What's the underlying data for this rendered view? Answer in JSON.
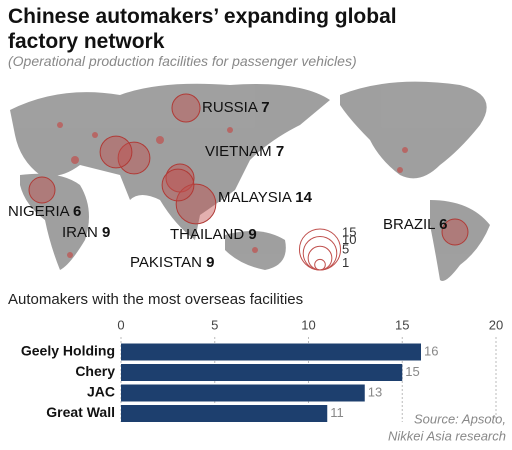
{
  "title": "Chinese automakers’ expanding global factory network",
  "subtitle": "(Operational production facilities for passenger vehicles)",
  "map": {
    "type": "bubble-map",
    "labels": [
      {
        "name": "RUSSIA",
        "value": 7
      },
      {
        "name": "VIETNAM",
        "value": 7
      },
      {
        "name": "MALAYSIA",
        "value": 14
      },
      {
        "name": "THAILAND",
        "value": 9
      },
      {
        "name": "PAKISTAN",
        "value": 9
      },
      {
        "name": "IRAN",
        "value": 9
      },
      {
        "name": "NIGERIA",
        "value": 6
      },
      {
        "name": "BRAZIL",
        "value": 6
      }
    ],
    "size_legend": [
      15,
      10,
      5,
      1
    ]
  },
  "chart_data": {
    "type": "bar",
    "orientation": "horizontal",
    "title": "Automakers with the most overseas facilities",
    "categories": [
      "Geely Holding",
      "Chery",
      "JAC",
      "Great Wall"
    ],
    "values": [
      16,
      15,
      13,
      11
    ],
    "color": "#1d3f6e",
    "xlim": [
      0,
      20
    ],
    "xticks": [
      0,
      5,
      10,
      15,
      20
    ],
    "grid": true
  },
  "source": [
    "Source: Apsoto,",
    "Nikkei Asia research"
  ]
}
